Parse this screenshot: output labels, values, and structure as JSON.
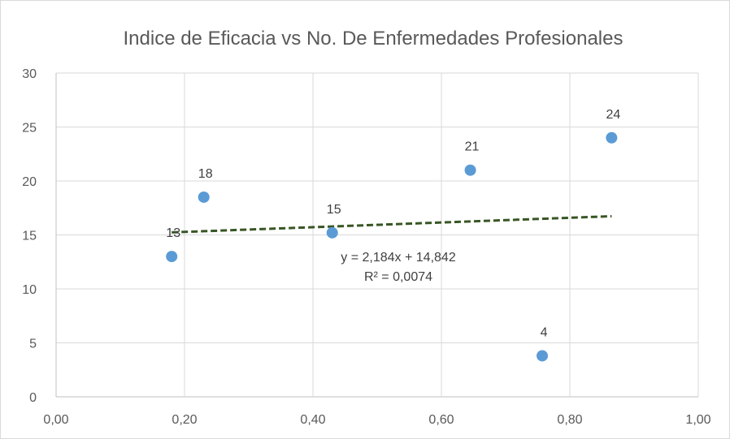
{
  "chart_data": {
    "type": "scatter",
    "title": "Indice de Eficacia vs No. De Enfermedades Profesionales",
    "xlabel": "",
    "ylabel": "",
    "xlim": [
      0,
      1
    ],
    "ylim": [
      0,
      30
    ],
    "x_ticks": [
      "0,00",
      "0,20",
      "0,40",
      "0,60",
      "0,80",
      "1,00"
    ],
    "x_tick_values": [
      0,
      0.2,
      0.4,
      0.6,
      0.8,
      1.0
    ],
    "y_ticks": [
      "0",
      "5",
      "10",
      "15",
      "20",
      "25",
      "30"
    ],
    "y_tick_values": [
      0,
      5,
      10,
      15,
      20,
      25,
      30
    ],
    "grid": true,
    "legend": "none",
    "colors": {
      "points": "#5b9bd5",
      "trendline": "#375623"
    },
    "series": [
      {
        "points": [
          {
            "x": 0.18,
            "y": 13,
            "label": "13"
          },
          {
            "x": 0.23,
            "y": 18.5,
            "label": "18"
          },
          {
            "x": 0.43,
            "y": 15.2,
            "label": "15"
          },
          {
            "x": 0.645,
            "y": 21,
            "label": "21"
          },
          {
            "x": 0.757,
            "y": 3.8,
            "label": "4"
          },
          {
            "x": 0.865,
            "y": 24,
            "label": "24"
          }
        ]
      }
    ],
    "trendline": {
      "type": "linear",
      "slope": 2.184,
      "intercept": 14.842,
      "x_range": [
        0.18,
        0.865
      ],
      "equation": "y = 2,184x + 14,842",
      "r_squared": "R² = 0,0074"
    }
  }
}
